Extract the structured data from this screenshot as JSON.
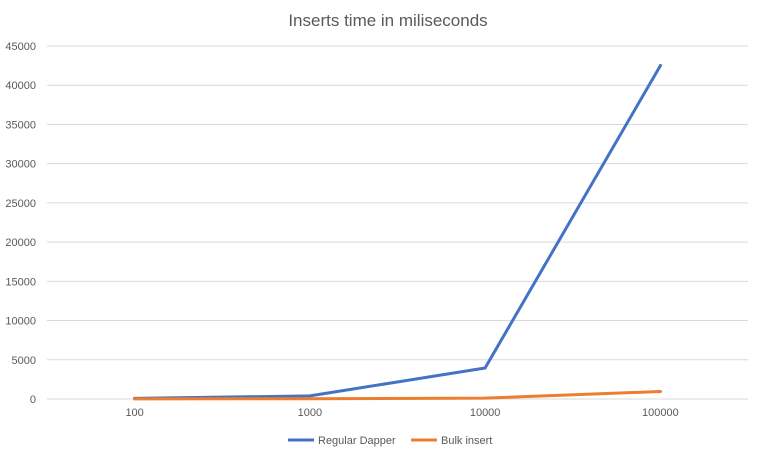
{
  "chart_data": {
    "type": "line",
    "title": "Inserts time in miliseconds",
    "categories": [
      "100",
      "1000",
      "10000",
      "100000"
    ],
    "series": [
      {
        "name": "Regular Dapper",
        "values": [
          80,
          400,
          3950,
          42500
        ],
        "color": "#4472C4"
      },
      {
        "name": "Bulk insert",
        "values": [
          10,
          35,
          120,
          950
        ],
        "color": "#ED7D31"
      }
    ],
    "ylim": [
      0,
      45000
    ],
    "y_ticks": [
      "0",
      "5000",
      "10000",
      "15000",
      "20000",
      "25000",
      "30000",
      "35000",
      "40000",
      "45000"
    ],
    "grid": true,
    "legend_position": "bottom"
  }
}
